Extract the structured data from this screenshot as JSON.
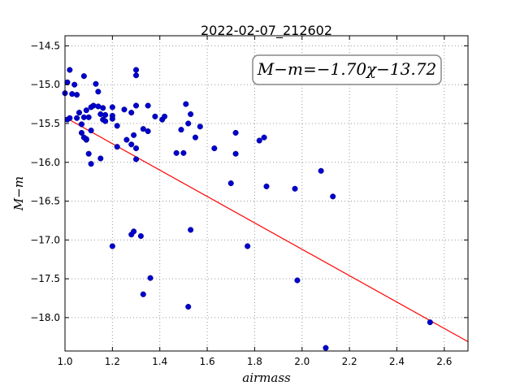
{
  "chart_data": {
    "type": "scatter",
    "title": "2022-02-07_212602",
    "xlabel": "airmass",
    "ylabel": "M−m",
    "xlim": [
      1.0,
      2.7
    ],
    "ylim": [
      -18.43,
      -14.37
    ],
    "grid": true,
    "x_ticks": [
      1.0,
      1.2,
      1.4,
      1.6,
      1.8,
      2.0,
      2.2,
      2.4,
      2.6
    ],
    "x_tick_labels": [
      "1.0",
      "1.2",
      "1.4",
      "1.6",
      "1.8",
      "2.0",
      "2.2",
      "2.4",
      "2.6"
    ],
    "y_ticks": [
      -14.5,
      -15.0,
      -15.5,
      -16.0,
      -16.5,
      -17.0,
      -17.5,
      -18.0
    ],
    "y_tick_labels": [
      "−14.5",
      "−15.0",
      "−15.5",
      "−16.0",
      "−16.5",
      "−17.0",
      "−17.5",
      "−18.0"
    ],
    "annotation": "M−m=−1.70χ−13.72",
    "point_color": "#0000cc",
    "fit_color": "#ff0000",
    "fit": {
      "slope": -1.7,
      "intercept": -13.72,
      "x_range": [
        1.0,
        2.7
      ]
    },
    "points": [
      [
        1.0,
        -15.11
      ],
      [
        1.01,
        -14.97
      ],
      [
        1.01,
        -15.45
      ],
      [
        1.02,
        -14.81
      ],
      [
        1.02,
        -15.43
      ],
      [
        1.03,
        -15.12
      ],
      [
        1.04,
        -15.0
      ],
      [
        1.05,
        -15.13
      ],
      [
        1.05,
        -15.43
      ],
      [
        1.06,
        -15.36
      ],
      [
        1.07,
        -15.51
      ],
      [
        1.07,
        -15.62
      ],
      [
        1.08,
        -14.89
      ],
      [
        1.08,
        -15.42
      ],
      [
        1.08,
        -15.68
      ],
      [
        1.09,
        -15.33
      ],
      [
        1.09,
        -15.71
      ],
      [
        1.09,
        -15.7
      ],
      [
        1.1,
        -15.42
      ],
      [
        1.1,
        -15.89
      ],
      [
        1.11,
        -15.29
      ],
      [
        1.11,
        -16.02
      ],
      [
        1.11,
        -15.59
      ],
      [
        1.12,
        -15.27
      ],
      [
        1.13,
        -14.99
      ],
      [
        1.14,
        -15.09
      ],
      [
        1.14,
        -15.28
      ],
      [
        1.15,
        -15.38
      ],
      [
        1.15,
        -15.95
      ],
      [
        1.16,
        -15.3
      ],
      [
        1.16,
        -15.45
      ],
      [
        1.17,
        -15.39
      ],
      [
        1.17,
        -15.47
      ],
      [
        1.2,
        -15.29
      ],
      [
        1.2,
        -15.4
      ],
      [
        1.2,
        -15.44
      ],
      [
        1.2,
        -17.08
      ],
      [
        1.22,
        -15.53
      ],
      [
        1.22,
        -15.8
      ],
      [
        1.25,
        -15.32
      ],
      [
        1.26,
        -15.71
      ],
      [
        1.28,
        -15.36
      ],
      [
        1.28,
        -15.77
      ],
      [
        1.28,
        -16.93
      ],
      [
        1.29,
        -16.89
      ],
      [
        1.29,
        -15.65
      ],
      [
        1.3,
        -15.82
      ],
      [
        1.3,
        -15.96
      ],
      [
        1.3,
        -14.81
      ],
      [
        1.3,
        -14.88
      ],
      [
        1.3,
        -15.27
      ],
      [
        1.32,
        -16.95
      ],
      [
        1.33,
        -15.57
      ],
      [
        1.33,
        -17.7
      ],
      [
        1.35,
        -15.6
      ],
      [
        1.35,
        -15.27
      ],
      [
        1.36,
        -17.49
      ],
      [
        1.38,
        -15.41
      ],
      [
        1.41,
        -15.45
      ],
      [
        1.42,
        -15.41
      ],
      [
        1.47,
        -15.88
      ],
      [
        1.49,
        -15.58
      ],
      [
        1.5,
        -15.88
      ],
      [
        1.51,
        -15.25
      ],
      [
        1.52,
        -15.5
      ],
      [
        1.52,
        -17.86
      ],
      [
        1.53,
        -16.87
      ],
      [
        1.53,
        -15.38
      ],
      [
        1.55,
        -15.68
      ],
      [
        1.57,
        -15.54
      ],
      [
        1.63,
        -15.82
      ],
      [
        1.7,
        -16.27
      ],
      [
        1.72,
        -15.62
      ],
      [
        1.72,
        -15.89
      ],
      [
        1.77,
        -17.08
      ],
      [
        1.82,
        -15.72
      ],
      [
        1.84,
        -15.68
      ],
      [
        1.85,
        -16.31
      ],
      [
        1.97,
        -16.34
      ],
      [
        1.98,
        -17.52
      ],
      [
        2.08,
        -16.11
      ],
      [
        2.1,
        -18.39
      ],
      [
        2.13,
        -16.44
      ],
      [
        2.54,
        -18.06
      ]
    ]
  }
}
